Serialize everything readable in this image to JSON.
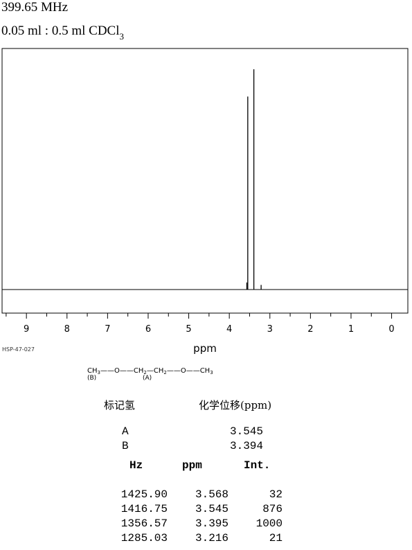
{
  "header": {
    "frequency": "399.65 MHz",
    "sample_prefix": "0.05 ml : 0.5 ml CDCl",
    "sample_sub": "3"
  },
  "spectrum_code": "HSP-47-027",
  "structure": {
    "ch3_left": "CH",
    "ch3_left_sub": "3",
    "o1": "O",
    "ch2_a": "CH",
    "ch2_a_sub": "2",
    "ch2_b": "CH",
    "ch2_b_sub": "2",
    "o2": "O",
    "ch3_right": "CH",
    "ch3_right_sub": "3",
    "label_b": "(B)",
    "label_a": "(A)"
  },
  "assignments": {
    "col_label": "标记氢",
    "col_shift": "化学位移(ppm)",
    "rows": [
      {
        "label": "A",
        "shift": "3.545"
      },
      {
        "label": "B",
        "shift": "3.394"
      }
    ]
  },
  "peak_table": {
    "headers": [
      "Hz",
      "ppm",
      "Int."
    ],
    "rows": [
      {
        "hz": "1425.90",
        "ppm": "3.568",
        "int": "32"
      },
      {
        "hz": "1416.75",
        "ppm": "3.545",
        "int": "876"
      },
      {
        "hz": "1356.57",
        "ppm": "3.395",
        "int": "1000"
      },
      {
        "hz": "1285.03",
        "ppm": "3.216",
        "int": "21"
      }
    ]
  },
  "chart_data": {
    "type": "line",
    "xlabel": "ppm",
    "xlim": [
      9.6,
      -0.4
    ],
    "x_reversed": true,
    "ticks": [
      "9",
      "8",
      "7",
      "6",
      "5",
      "4",
      "3",
      "2",
      "1",
      "0"
    ],
    "grid": false,
    "series": [
      {
        "peaks": [
          {
            "ppm": 3.568,
            "intensity": 32
          },
          {
            "ppm": 3.545,
            "intensity": 876
          },
          {
            "ppm": 3.395,
            "intensity": 1000
          },
          {
            "ppm": 3.216,
            "intensity": 21
          }
        ]
      }
    ]
  }
}
